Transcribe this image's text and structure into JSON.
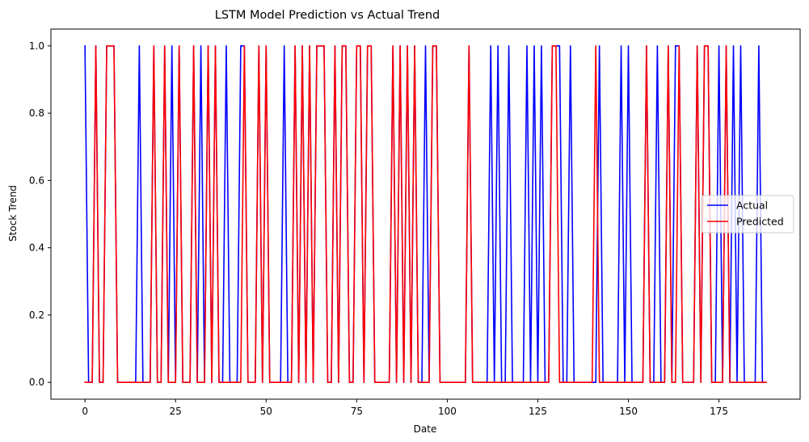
{
  "chart_data": {
    "type": "line",
    "title": "LSTM Model Prediction vs Actual Trend",
    "xlabel": "Date",
    "ylabel": "Stock Trend",
    "xlim": [
      -9.4,
      197.4
    ],
    "ylim": [
      -0.05,
      1.05
    ],
    "xticks": [
      0,
      25,
      50,
      75,
      100,
      125,
      150,
      175
    ],
    "yticks": [
      0.0,
      0.2,
      0.4,
      0.6,
      0.8,
      1.0
    ],
    "ytick_labels": [
      "0.0",
      "0.2",
      "0.4",
      "0.6",
      "0.8",
      "1.0"
    ],
    "grid": false,
    "legend_position": "center-right",
    "series": [
      {
        "name": "Actual",
        "color": "#0000ff",
        "values": [
          1,
          0,
          0,
          1,
          0,
          0,
          1,
          1,
          1,
          0,
          0,
          0,
          0,
          0,
          0,
          1,
          0,
          0,
          0,
          1,
          0,
          0,
          1,
          0,
          1,
          0,
          1,
          0,
          0,
          0,
          1,
          0,
          1,
          0,
          1,
          0,
          1,
          0,
          0,
          1,
          0,
          0,
          0,
          1,
          1,
          0,
          0,
          0,
          1,
          0,
          1,
          0,
          0,
          0,
          0,
          1,
          0,
          0,
          1,
          0,
          1,
          0,
          1,
          0,
          1,
          1,
          1,
          0,
          0,
          1,
          0,
          1,
          1,
          0,
          0,
          1,
          1,
          0,
          1,
          1,
          0,
          0,
          0,
          0,
          0,
          1,
          0,
          1,
          0,
          1,
          0,
          1,
          0,
          0,
          1,
          0,
          1,
          1,
          0,
          0,
          0,
          0,
          0,
          0,
          0,
          0,
          1,
          0,
          0,
          0,
          0,
          0,
          1,
          0,
          1,
          0,
          0,
          1,
          0,
          0,
          0,
          0,
          1,
          0,
          1,
          0,
          1,
          0,
          0,
          1,
          1,
          1,
          0,
          0,
          1,
          0,
          0,
          0,
          0,
          0,
          0,
          0,
          1,
          0,
          0,
          0,
          0,
          0,
          1,
          0,
          1,
          0,
          0,
          0,
          0,
          1,
          0,
          0,
          1,
          0,
          0,
          1,
          0,
          1,
          1,
          0,
          0,
          0,
          0,
          1,
          0,
          1,
          1,
          0,
          0,
          1,
          0,
          1,
          0,
          1,
          0,
          1,
          0,
          0,
          0,
          0,
          1,
          0,
          0
        ]
      },
      {
        "name": "Predicted",
        "color": "#ff0000",
        "values": [
          0,
          0,
          0,
          1,
          0,
          0,
          1,
          1,
          1,
          0,
          0,
          0,
          0,
          0,
          0,
          0,
          0,
          0,
          0,
          1,
          0,
          0,
          1,
          0,
          0,
          0,
          1,
          0,
          0,
          0,
          1,
          0,
          0,
          0,
          1,
          0,
          1,
          0,
          0,
          0,
          0,
          0,
          0,
          0,
          1,
          0,
          0,
          0,
          1,
          0,
          1,
          0,
          0,
          0,
          0,
          0,
          0,
          0,
          1,
          0,
          1,
          0,
          1,
          0,
          1,
          1,
          1,
          0,
          0,
          1,
          0,
          1,
          1,
          0,
          0,
          1,
          1,
          0,
          1,
          1,
          0,
          0,
          0,
          0,
          0,
          1,
          0,
          1,
          0,
          1,
          0,
          1,
          0,
          0,
          0,
          0,
          1,
          1,
          0,
          0,
          0,
          0,
          0,
          0,
          0,
          0,
          1,
          0,
          0,
          0,
          0,
          0,
          0,
          0,
          0,
          0,
          0,
          0,
          0,
          0,
          0,
          0,
          0,
          0,
          0,
          0,
          0,
          0,
          0,
          1,
          1,
          0,
          0,
          0,
          0,
          0,
          0,
          0,
          0,
          0,
          0,
          1,
          0,
          0,
          0,
          0,
          0,
          0,
          0,
          0,
          0,
          0,
          0,
          0,
          0,
          1,
          0,
          0,
          0,
          0,
          0,
          1,
          0,
          0,
          1,
          0,
          0,
          0,
          0,
          1,
          0,
          1,
          1,
          0,
          0,
          0,
          0,
          1,
          0,
          0,
          0,
          0,
          0,
          0,
          0,
          0,
          0,
          0,
          0
        ]
      }
    ]
  }
}
